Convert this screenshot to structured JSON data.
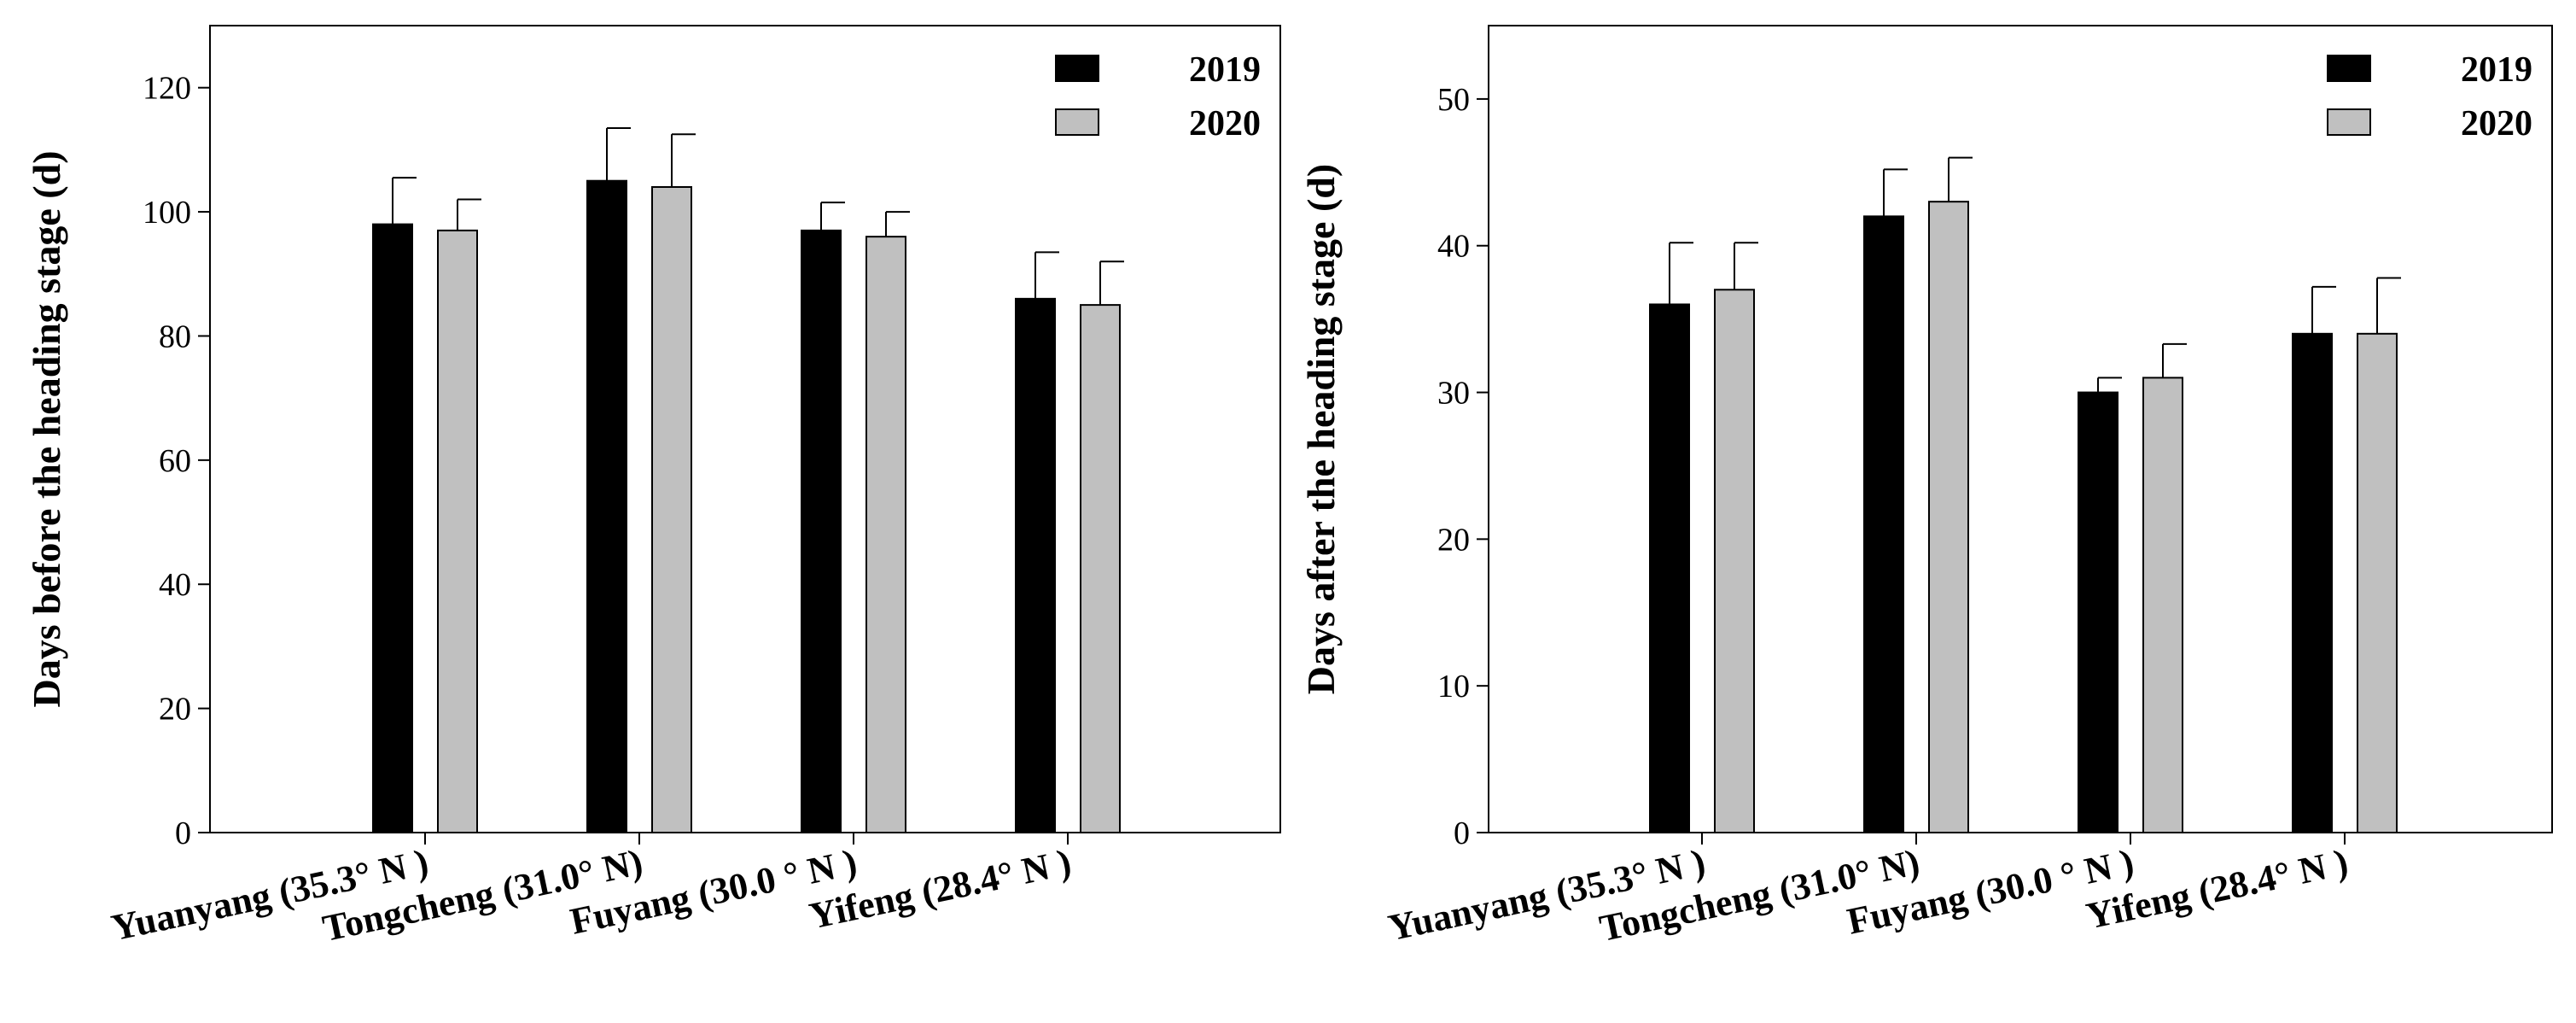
{
  "chart_data": [
    {
      "type": "bar",
      "title": "",
      "xlabel": "",
      "ylabel": "Days before the heading stage (d)",
      "ylim": [
        0,
        130
      ],
      "yticks": [
        0,
        20,
        40,
        60,
        80,
        100,
        120
      ],
      "categories": [
        "Yuanyang (35.3° N )",
        "Tongcheng (31.0° N)",
        "Fuyang (30.0 ° N )",
        "Yifeng (28.4° N )"
      ],
      "legend_position": "top-right",
      "series": [
        {
          "name": "2019",
          "color": "#000000",
          "values": [
            98,
            105,
            97,
            86
          ],
          "errors": [
            7.5,
            8.5,
            4.5,
            7.5
          ]
        },
        {
          "name": "2020",
          "color": "#c0c0c0",
          "values": [
            97,
            104,
            96,
            85
          ],
          "errors": [
            5,
            8.5,
            4,
            7
          ]
        }
      ]
    },
    {
      "type": "bar",
      "title": "",
      "xlabel": "",
      "ylabel": "Days after the heading stage (d)",
      "ylim": [
        0,
        55
      ],
      "yticks": [
        0,
        10,
        20,
        30,
        40,
        50
      ],
      "categories": [
        "Yuanyang (35.3° N )",
        "Tongcheng (31.0° N)",
        "Fuyang (30.0 ° N )",
        "Yifeng (28.4° N )"
      ],
      "legend_position": "top-right",
      "series": [
        {
          "name": "2019",
          "color": "#000000",
          "values": [
            36,
            42,
            30,
            34
          ],
          "errors": [
            4.2,
            3.2,
            1,
            3.2
          ]
        },
        {
          "name": "2020",
          "color": "#c0c0c0",
          "values": [
            37,
            43,
            31,
            34
          ],
          "errors": [
            3.2,
            3,
            2.3,
            3.8
          ]
        }
      ]
    }
  ]
}
